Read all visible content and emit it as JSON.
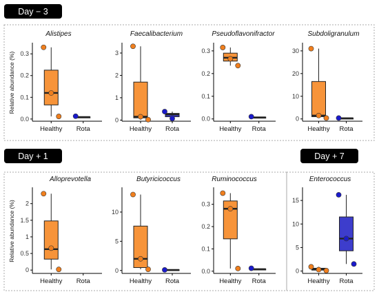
{
  "headers": [
    {
      "id": "day-minus-3",
      "text": "Day − 3"
    },
    {
      "id": "day-plus-1",
      "text": "Day + 1"
    },
    {
      "id": "day-plus-7",
      "text": "Day + 7"
    }
  ],
  "colors": {
    "healthy": "#f7943a",
    "rota": "#3d3dcc",
    "healthy_point": "#f07f1e",
    "rota_point": "#1a1acc",
    "badge": "#000000",
    "panel_border": "#aaaaaa"
  },
  "chart_data": [
    {
      "type": "box",
      "title": "Alistipes",
      "ylabel": "Relative abundance (%)",
      "categories": [
        "Healthy",
        "Rota"
      ],
      "ylim": [
        -0.01,
        0.345
      ],
      "yticks": [
        0.0,
        0.1,
        0.2,
        0.3
      ],
      "boxes": [
        {
          "group": "Healthy",
          "min": 0.012,
          "q1": 0.065,
          "median": 0.12,
          "q3": 0.225,
          "max": 0.33,
          "points": [
            0.33,
            0.12,
            0.012
          ]
        },
        {
          "group": "Rota",
          "min": 0.008,
          "q1": 0.008,
          "median": 0.009,
          "q3": 0.01,
          "max": 0.012,
          "points": [
            0.013
          ]
        }
      ]
    },
    {
      "type": "box",
      "title": "Faecalibacterium",
      "ylabel": "",
      "categories": [
        "Healthy",
        "Rota"
      ],
      "ylim": [
        -0.05,
        3.4
      ],
      "yticks": [
        0,
        1,
        2,
        3
      ],
      "boxes": [
        {
          "group": "Healthy",
          "min": 0.02,
          "q1": 0.1,
          "median": 0.15,
          "q3": 1.7,
          "max": 3.3,
          "points": [
            3.3,
            0.15,
            0.02
          ]
        },
        {
          "group": "Rota",
          "min": 0.05,
          "q1": 0.15,
          "median": 0.25,
          "q3": 0.3,
          "max": 0.38,
          "points": [
            0.38,
            0.07
          ]
        }
      ]
    },
    {
      "type": "box",
      "title": "Pseudoflavonifractor",
      "ylabel": "",
      "categories": [
        "Healthy",
        "Rota"
      ],
      "ylim": [
        -0.01,
        0.33
      ],
      "yticks": [
        0.0,
        0.1,
        0.2,
        0.3
      ],
      "boxes": [
        {
          "group": "Healthy",
          "min": 0.235,
          "q1": 0.255,
          "median": 0.27,
          "q3": 0.29,
          "max": 0.315,
          "points": [
            0.315,
            0.265,
            0.235
          ]
        },
        {
          "group": "Rota",
          "min": 0.006,
          "q1": 0.006,
          "median": 0.007,
          "q3": 0.008,
          "max": 0.009,
          "points": [
            0.01
          ]
        }
      ]
    },
    {
      "type": "box",
      "title": "Subdoligranulum",
      "ylabel": "",
      "categories": [
        "Healthy",
        "Rota"
      ],
      "ylim": [
        -1,
        33
      ],
      "yticks": [
        0,
        10,
        20,
        30
      ],
      "boxes": [
        {
          "group": "Healthy",
          "min": 0.5,
          "q1": 1.0,
          "median": 1.5,
          "q3": 16.5,
          "max": 31.0,
          "points": [
            31.0,
            1.5,
            0.4
          ]
        },
        {
          "group": "Rota",
          "min": 0.1,
          "q1": 0.2,
          "median": 0.3,
          "q3": 0.4,
          "max": 0.5,
          "points": [
            0.4
          ]
        }
      ]
    },
    {
      "type": "box",
      "title": "Alloprevotella",
      "ylabel": "Relative abundance (%)",
      "categories": [
        "Healthy",
        "Rota"
      ],
      "ylim": [
        -0.1,
        2.45
      ],
      "yticks": [
        0.0,
        0.5,
        1.0,
        1.5,
        2.0
      ],
      "boxes": [
        {
          "group": "Healthy",
          "min": 0.02,
          "q1": 0.33,
          "median": 0.63,
          "q3": 1.48,
          "max": 2.3,
          "points": [
            2.3,
            0.66,
            0.02
          ]
        }
      ]
    },
    {
      "type": "box",
      "title": "Butyricicoccus",
      "ylabel": "",
      "categories": [
        "Healthy",
        "Rota"
      ],
      "ylim": [
        -0.5,
        14
      ],
      "yticks": [
        0,
        5,
        10
      ],
      "boxes": [
        {
          "group": "Healthy",
          "min": 0.2,
          "q1": 0.5,
          "median": 2.0,
          "q3": 7.6,
          "max": 13.0,
          "points": [
            13.0,
            2.0,
            0.2
          ]
        },
        {
          "group": "Rota",
          "min": 0.05,
          "q1": 0.05,
          "median": 0.1,
          "q3": 0.15,
          "max": 0.2,
          "points": [
            0.1
          ]
        }
      ]
    },
    {
      "type": "box",
      "title": "Ruminococcus",
      "ylabel": "",
      "categories": [
        "Healthy",
        "Rota"
      ],
      "ylim": [
        -0.01,
        0.37
      ],
      "yticks": [
        0.0,
        0.1,
        0.2,
        0.3
      ],
      "boxes": [
        {
          "group": "Healthy",
          "min": 0.012,
          "q1": 0.145,
          "median": 0.28,
          "q3": 0.315,
          "max": 0.35,
          "points": [
            0.35,
            0.28,
            0.012
          ]
        },
        {
          "group": "Rota",
          "min": 0.008,
          "q1": 0.008,
          "median": 0.009,
          "q3": 0.01,
          "max": 0.012,
          "points": [
            0.013
          ]
        }
      ]
    },
    {
      "type": "box",
      "title": "Enterococcus",
      "ylabel": "",
      "categories": [
        "Healthy",
        "Rota"
      ],
      "ylim": [
        -0.5,
        17.5
      ],
      "yticks": [
        0,
        5,
        10,
        15
      ],
      "boxes": [
        {
          "group": "Healthy",
          "min": 0.1,
          "q1": 0.2,
          "median": 0.4,
          "q3": 0.6,
          "max": 0.9,
          "points": [
            0.9,
            0.3,
            0.1
          ]
        },
        {
          "group": "Rota",
          "min": 1.5,
          "q1": 4.3,
          "median": 6.9,
          "q3": 11.5,
          "max": 16.2,
          "points": [
            16.2,
            6.9,
            1.5
          ]
        }
      ]
    }
  ]
}
